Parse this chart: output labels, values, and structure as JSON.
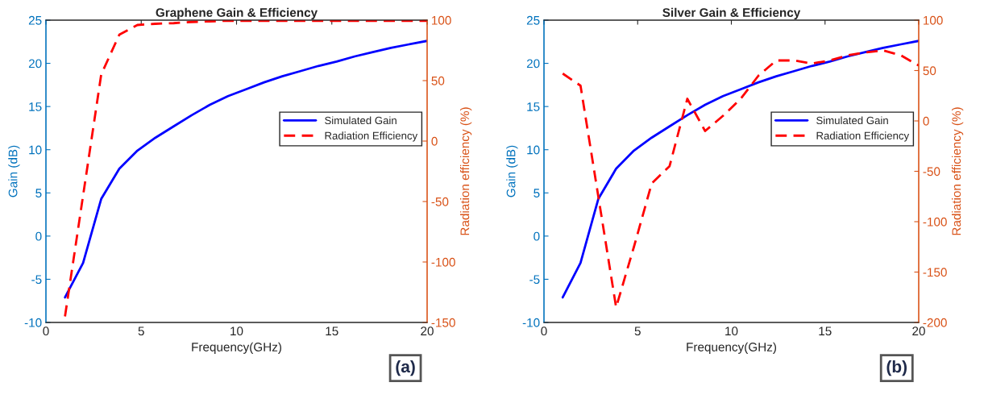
{
  "chart_data": [
    {
      "type": "line",
      "title": "Graphene Gain & Efficiency",
      "xlabel": "Frequency(GHz)",
      "ylabel": "Gain (dB)",
      "y2label": "Radiation efficiency (%)",
      "xlim": [
        0,
        20
      ],
      "xticks": [
        0,
        5,
        10,
        15,
        20
      ],
      "ylim": [
        -10,
        25
      ],
      "yticks": [
        -10,
        -5,
        0,
        5,
        10,
        15,
        20,
        25
      ],
      "y2lim": [
        -150,
        100
      ],
      "y2ticks": [
        -150,
        -100,
        -50,
        0,
        50,
        100
      ],
      "x": [
        1,
        1.95,
        2.9,
        3.85,
        4.8,
        5.75,
        6.7,
        7.65,
        8.6,
        9.55,
        10.5,
        11.45,
        12.4,
        13.35,
        14.3,
        15.25,
        16.2,
        17.15,
        18.1,
        19.05,
        20
      ],
      "series": [
        {
          "name": "Simulated Gain",
          "color": "#0000ff",
          "line_style": "solid",
          "values": [
            -7.1,
            -3.1,
            4.3,
            7.8,
            9.9,
            11.4,
            12.7,
            14.0,
            15.2,
            16.2,
            17.0,
            17.8,
            18.5,
            19.1,
            19.7,
            20.2,
            20.8,
            21.3,
            21.8,
            22.2,
            22.6
          ]
        },
        {
          "name": "Radiation Efficiency",
          "color": "#ff0000",
          "line_style": "dashed",
          "axis": "y2",
          "values": [
            -145,
            -45,
            55,
            88,
            96,
            97,
            97.5,
            98.5,
            99,
            99.5,
            99.5,
            99.5,
            99.5,
            99.5,
            99.5,
            99.5,
            99.5,
            99.5,
            99.5,
            99.5,
            99.5
          ]
        }
      ],
      "legend": "right",
      "grid": false,
      "annotations": [
        "(a)"
      ]
    },
    {
      "type": "line",
      "title": "Silver Gain & Efficiency",
      "xlabel": "Frequency(GHz)",
      "ylabel": "Gain (dB)",
      "y2label": "Radiation efficiency (%)",
      "xlim": [
        0,
        20
      ],
      "xticks": [
        0,
        5,
        10,
        15,
        20
      ],
      "ylim": [
        -10,
        25
      ],
      "yticks": [
        -10,
        -5,
        0,
        5,
        10,
        15,
        20,
        25
      ],
      "y2lim": [
        -200,
        100
      ],
      "y2ticks": [
        -200,
        -150,
        -100,
        -50,
        0,
        50,
        100
      ],
      "x": [
        1,
        1.95,
        2.9,
        3.85,
        4.8,
        5.75,
        6.7,
        7.65,
        8.6,
        9.55,
        10.5,
        11.45,
        12.4,
        13.35,
        14.3,
        15.25,
        16.2,
        17.15,
        18.1,
        19.05,
        20
      ],
      "series": [
        {
          "name": "Simulated Gain",
          "color": "#0000ff",
          "line_style": "solid",
          "values": [
            -7.1,
            -3.1,
            4.3,
            7.8,
            9.9,
            11.4,
            12.7,
            14.0,
            15.2,
            16.2,
            17.0,
            17.8,
            18.5,
            19.1,
            19.7,
            20.2,
            20.8,
            21.3,
            21.8,
            22.2,
            22.6
          ]
        },
        {
          "name": "Radiation Efficiency",
          "color": "#ff0000",
          "line_style": "dashed",
          "axis": "y2",
          "values": [
            47,
            35,
            -75,
            -185,
            -125,
            -62,
            -45,
            22,
            -10,
            5,
            22,
            45,
            60,
            60,
            57,
            60,
            65,
            68,
            70,
            65,
            55
          ]
        }
      ],
      "legend": "right",
      "grid": false,
      "annotations": [
        "(b)"
      ]
    }
  ]
}
